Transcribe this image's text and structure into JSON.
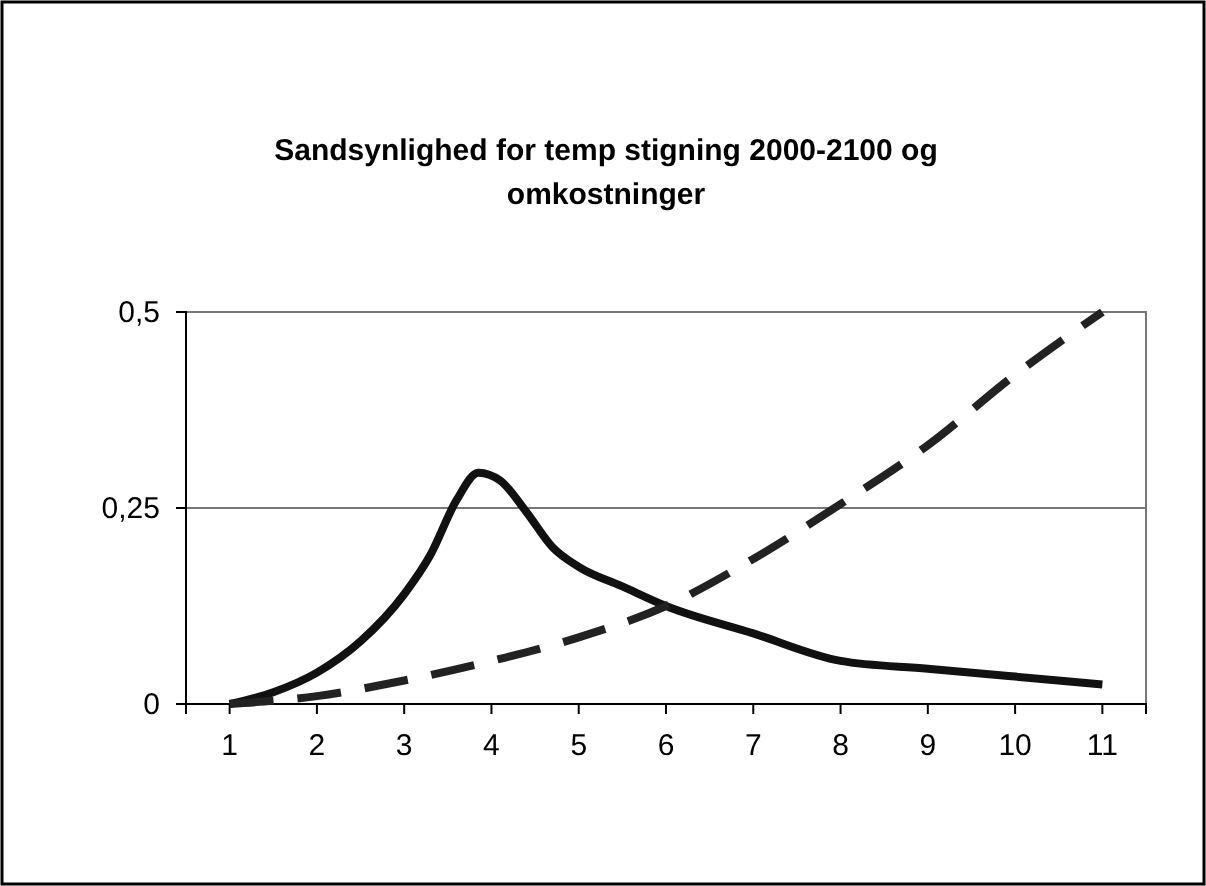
{
  "chart_data": {
    "type": "line",
    "title": "Sandsynlighed for temp stigning 2000-2100 og omkostninger",
    "xlim": [
      0.5,
      11.5
    ],
    "xticks": [
      1,
      2,
      3,
      4,
      5,
      6,
      7,
      8,
      9,
      10,
      11
    ],
    "ylim": [
      0,
      0.5
    ],
    "yticks": [
      {
        "value": 0,
        "label": "0"
      },
      {
        "value": 0.25,
        "label": "0,25"
      },
      {
        "value": 0.5,
        "label": "0,5"
      }
    ],
    "grid": "y",
    "series": [
      {
        "color": "#111111",
        "line_style": "solid",
        "x": [
          1,
          1.5,
          2,
          2.5,
          3,
          3.3,
          3.6,
          3.85,
          4.1,
          4.4,
          4.7,
          5,
          5.5,
          6,
          7,
          8,
          9,
          10,
          11
        ],
        "values": [
          0,
          0.015,
          0.04,
          0.08,
          0.14,
          0.19,
          0.26,
          0.295,
          0.285,
          0.245,
          0.2,
          0.175,
          0.15,
          0.125,
          0.09,
          0.055,
          0.045,
          0.035,
          0.025
        ]
      },
      {
        "color": "#222222",
        "line_style": "dashed",
        "x": [
          1,
          2,
          3,
          4,
          5,
          6,
          7,
          8,
          9,
          10,
          11
        ],
        "values": [
          0,
          0.01,
          0.03,
          0.055,
          0.085,
          0.125,
          0.185,
          0.255,
          0.33,
          0.42,
          0.5
        ]
      }
    ]
  }
}
